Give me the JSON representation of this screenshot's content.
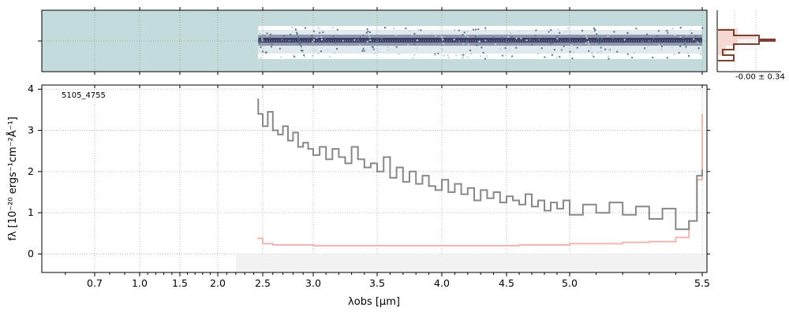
{
  "chart_data": [
    {
      "type": "heatmap",
      "panel": "2d-spectrum",
      "description_colors": {
        "background": "#c4dbdb",
        "trace_dark": "#3a3f63",
        "trace_light": "#ffffff"
      },
      "x_range_um": [
        0.52,
        5.52
      ],
      "trace_start_um": 2.45,
      "grid": true
    },
    {
      "type": "line",
      "panel": "spectrum",
      "label": "5105_4755",
      "xlabel": "λobs [μm]",
      "ylabel": "fλ [10⁻²⁰ ergs⁻¹cm⁻²Å⁻¹]",
      "xlim": [
        0.52,
        5.52
      ],
      "ylim": [
        -0.45,
        4.1
      ],
      "x_ticks": [
        {
          "value": 0.7,
          "label": "0.7"
        },
        {
          "value": 1.0,
          "label": "1.0"
        },
        {
          "value": 1.5,
          "label": "1.5"
        },
        {
          "value": 2.0,
          "label": "2.0"
        },
        {
          "value": 2.5,
          "label": "2.5"
        },
        {
          "value": 3.0,
          "label": "3.0"
        },
        {
          "value": 3.5,
          "label": "3.5"
        },
        {
          "value": 4.0,
          "label": "4.0"
        },
        {
          "value": 4.5,
          "label": "4.5"
        },
        {
          "value": 5.0,
          "label": "5.0"
        },
        {
          "value": 5.5,
          "label": "5.5"
        }
      ],
      "y_ticks": [
        {
          "value": 0,
          "label": "0"
        },
        {
          "value": 1,
          "label": "1"
        },
        {
          "value": 2,
          "label": "2"
        },
        {
          "value": 3,
          "label": "3"
        },
        {
          "value": 4,
          "label": "4"
        }
      ],
      "grid": true,
      "series": [
        {
          "role": "flux",
          "color": "#888888",
          "x": [
            2.44,
            2.45,
            2.5,
            2.55,
            2.6,
            2.65,
            2.7,
            2.75,
            2.8,
            2.85,
            2.9,
            2.95,
            3.0,
            3.05,
            3.1,
            3.15,
            3.2,
            3.25,
            3.3,
            3.35,
            3.4,
            3.45,
            3.5,
            3.55,
            3.6,
            3.65,
            3.7,
            3.75,
            3.8,
            3.85,
            3.9,
            3.95,
            4.0,
            4.05,
            4.1,
            4.15,
            4.2,
            4.25,
            4.3,
            4.35,
            4.4,
            4.45,
            4.5,
            4.55,
            4.6,
            4.65,
            4.7,
            4.75,
            4.8,
            4.85,
            4.9,
            4.95,
            5.0,
            5.05,
            5.1,
            5.15,
            5.2,
            5.25,
            5.3,
            5.35,
            5.4,
            5.45,
            5.48,
            5.5
          ],
          "y": [
            3.75,
            3.4,
            3.1,
            3.45,
            3.0,
            2.9,
            3.1,
            2.75,
            2.95,
            2.6,
            2.7,
            2.55,
            2.4,
            2.6,
            2.3,
            2.55,
            2.35,
            2.2,
            2.6,
            2.3,
            2.1,
            2.2,
            2.0,
            2.35,
            1.85,
            2.1,
            1.75,
            2.0,
            1.7,
            1.9,
            1.65,
            1.55,
            1.8,
            1.5,
            1.7,
            1.45,
            1.6,
            1.3,
            1.55,
            1.35,
            1.5,
            1.25,
            1.4,
            1.3,
            1.2,
            1.45,
            1.15,
            1.3,
            1.05,
            1.25,
            1.1,
            1.3,
            0.95,
            1.2,
            1.0,
            1.25,
            0.95,
            1.15,
            0.85,
            1.1,
            0.6,
            0.8,
            1.9,
            2.05
          ]
        },
        {
          "role": "uncertainty",
          "color": "#f4b6b2",
          "x": [
            2.44,
            2.5,
            2.6,
            2.7,
            2.8,
            2.9,
            3.0,
            3.2,
            3.4,
            3.6,
            3.8,
            4.0,
            4.2,
            4.4,
            4.6,
            4.8,
            5.0,
            5.2,
            5.3,
            5.4,
            5.45,
            5.48,
            5.5
          ],
          "y": [
            0.38,
            0.25,
            0.22,
            0.22,
            0.22,
            0.22,
            0.2,
            0.2,
            0.2,
            0.2,
            0.2,
            0.2,
            0.2,
            0.2,
            0.22,
            0.22,
            0.25,
            0.28,
            0.3,
            0.4,
            0.8,
            1.8,
            3.4
          ]
        }
      ]
    },
    {
      "type": "line",
      "panel": "noise-histogram",
      "annotation": "-0.00 ± 0.34",
      "series": [
        {
          "role": "histogram",
          "color": "#7a4030",
          "x": [
            -1.0,
            -0.5,
            0,
            0.5,
            1.0
          ],
          "y": [
            0.1,
            0.45,
            1.0,
            0.5,
            0.1
          ]
        }
      ]
    }
  ]
}
